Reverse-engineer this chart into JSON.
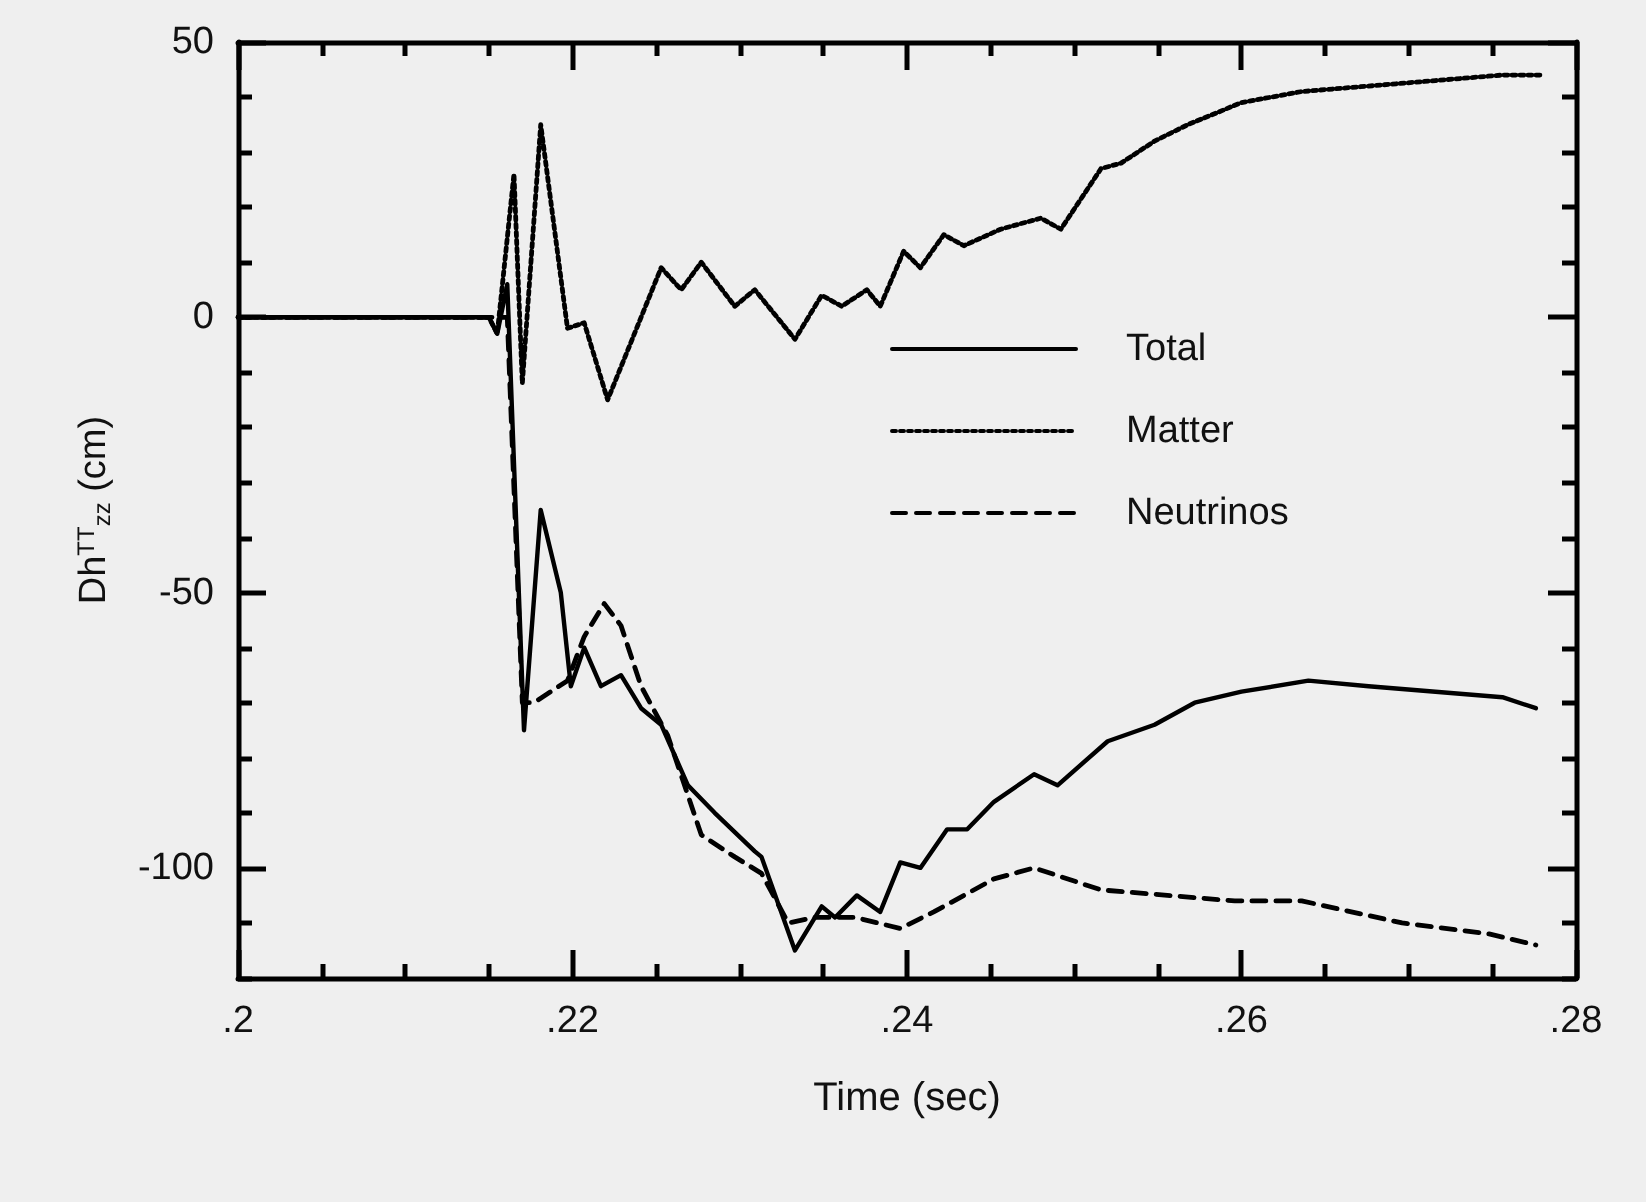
{
  "chart_data": {
    "type": "line",
    "xlabel": "Time (sec)",
    "ylabel": "Dh$^{TT}$$_{zz}$ (cm)",
    "xlim": [
      0.2,
      0.28
    ],
    "ylim": [
      -120,
      50
    ],
    "xticks": [
      {
        "value": 0.2,
        "label": ".2"
      },
      {
        "value": 0.205,
        "label": null
      },
      {
        "value": 0.21,
        "label": null
      },
      {
        "value": 0.215,
        "label": null
      },
      {
        "value": 0.22,
        "label": ".22"
      },
      {
        "value": 0.225,
        "label": null
      },
      {
        "value": 0.23,
        "label": null
      },
      {
        "value": 0.235,
        "label": null
      },
      {
        "value": 0.24,
        "label": ".24"
      },
      {
        "value": 0.245,
        "label": null
      },
      {
        "value": 0.25,
        "label": null
      },
      {
        "value": 0.255,
        "label": null
      },
      {
        "value": 0.26,
        "label": ".26"
      },
      {
        "value": 0.265,
        "label": null
      },
      {
        "value": 0.27,
        "label": null
      },
      {
        "value": 0.275,
        "label": null
      },
      {
        "value": 0.28,
        "label": ".28"
      }
    ],
    "yticks": [
      {
        "value": -120,
        "label": null
      },
      {
        "value": -110,
        "label": null
      },
      -100,
      {
        "value": -90,
        "label": null
      },
      {
        "value": -80,
        "label": null
      },
      {
        "value": -70,
        "label": null
      },
      {
        "value": -60,
        "label": null
      },
      -50,
      {
        "value": -40,
        "label": null
      },
      {
        "value": -30,
        "label": null
      },
      {
        "value": -20,
        "label": null
      },
      {
        "value": -10,
        "label": null
      },
      0,
      {
        "value": 10,
        "label": null
      },
      {
        "value": 20,
        "label": null
      },
      {
        "value": 30,
        "label": null
      },
      {
        "value": 40,
        "label": null
      },
      50
    ],
    "legend": "right",
    "series": [
      {
        "name": "Total",
        "color": "#000000",
        "line_style": "solid",
        "x": [
          0.2,
          0.215,
          0.2155,
          0.2161,
          0.2171,
          0.2181,
          0.2193,
          0.2199,
          0.2207,
          0.2217,
          0.2229,
          0.2241,
          0.2253,
          0.2269,
          0.2285,
          0.2309,
          0.2313,
          0.2333,
          0.2349,
          0.2357,
          0.237,
          0.2384,
          0.2396,
          0.2408,
          0.2424,
          0.2436,
          0.2452,
          0.2476,
          0.249,
          0.252,
          0.2548,
          0.2572,
          0.26,
          0.264,
          0.2676,
          0.2716,
          0.2756,
          0.2776
        ],
        "values": [
          0,
          0,
          -3,
          6,
          -75,
          -35,
          -50,
          -67,
          -60,
          -67,
          -65,
          -71,
          -74,
          -85,
          -90,
          -97,
          -98,
          -115,
          -107,
          -109,
          -105,
          -108,
          -99,
          -100,
          -93,
          -93,
          -88,
          -83,
          -85,
          -77,
          -74,
          -70,
          -68,
          -66,
          -67,
          -68,
          -69,
          -71
        ]
      },
      {
        "name": "Matter",
        "color": "#000000",
        "line_style": "dotted",
        "x": [
          0.2,
          0.215,
          0.2155,
          0.2165,
          0.217,
          0.2181,
          0.2197,
          0.2207,
          0.2221,
          0.2233,
          0.2253,
          0.2265,
          0.2277,
          0.2297,
          0.2309,
          0.2333,
          0.2349,
          0.2361,
          0.2376,
          0.2384,
          0.2398,
          0.2408,
          0.2422,
          0.2434,
          0.2456,
          0.248,
          0.2492,
          0.2516,
          0.2528,
          0.2548,
          0.2568,
          0.26,
          0.2636,
          0.2676,
          0.2716,
          0.2756,
          0.278
        ],
        "values": [
          0,
          0,
          -3,
          26,
          -12,
          35,
          -2,
          -1,
          -15,
          -6,
          9,
          5,
          10,
          2,
          5,
          -4,
          4,
          2,
          5,
          2,
          12,
          9,
          15,
          13,
          16,
          18,
          16,
          27,
          28,
          32,
          35,
          39,
          41,
          42,
          43,
          44,
          44
        ]
      },
      {
        "name": "Neutrinos",
        "color": "#000000",
        "line_style": "dashed",
        "x": [
          0.2,
          0.215,
          0.2161,
          0.217,
          0.2177,
          0.2197,
          0.2207,
          0.2219,
          0.2229,
          0.2241,
          0.2257,
          0.2277,
          0.2297,
          0.2313,
          0.2329,
          0.2345,
          0.2369,
          0.2396,
          0.2416,
          0.2452,
          0.2476,
          0.2516,
          0.2596,
          0.2636,
          0.2696,
          0.2748,
          0.2776
        ],
        "values": [
          0,
          0,
          0,
          -70,
          -70,
          -66,
          -58,
          -52,
          -56,
          -67,
          -76,
          -94,
          -98,
          -101,
          -110,
          -109,
          -109,
          -111,
          -108,
          -102,
          -100,
          -104,
          -106,
          -106,
          -110,
          -112,
          -114
        ]
      }
    ]
  }
}
